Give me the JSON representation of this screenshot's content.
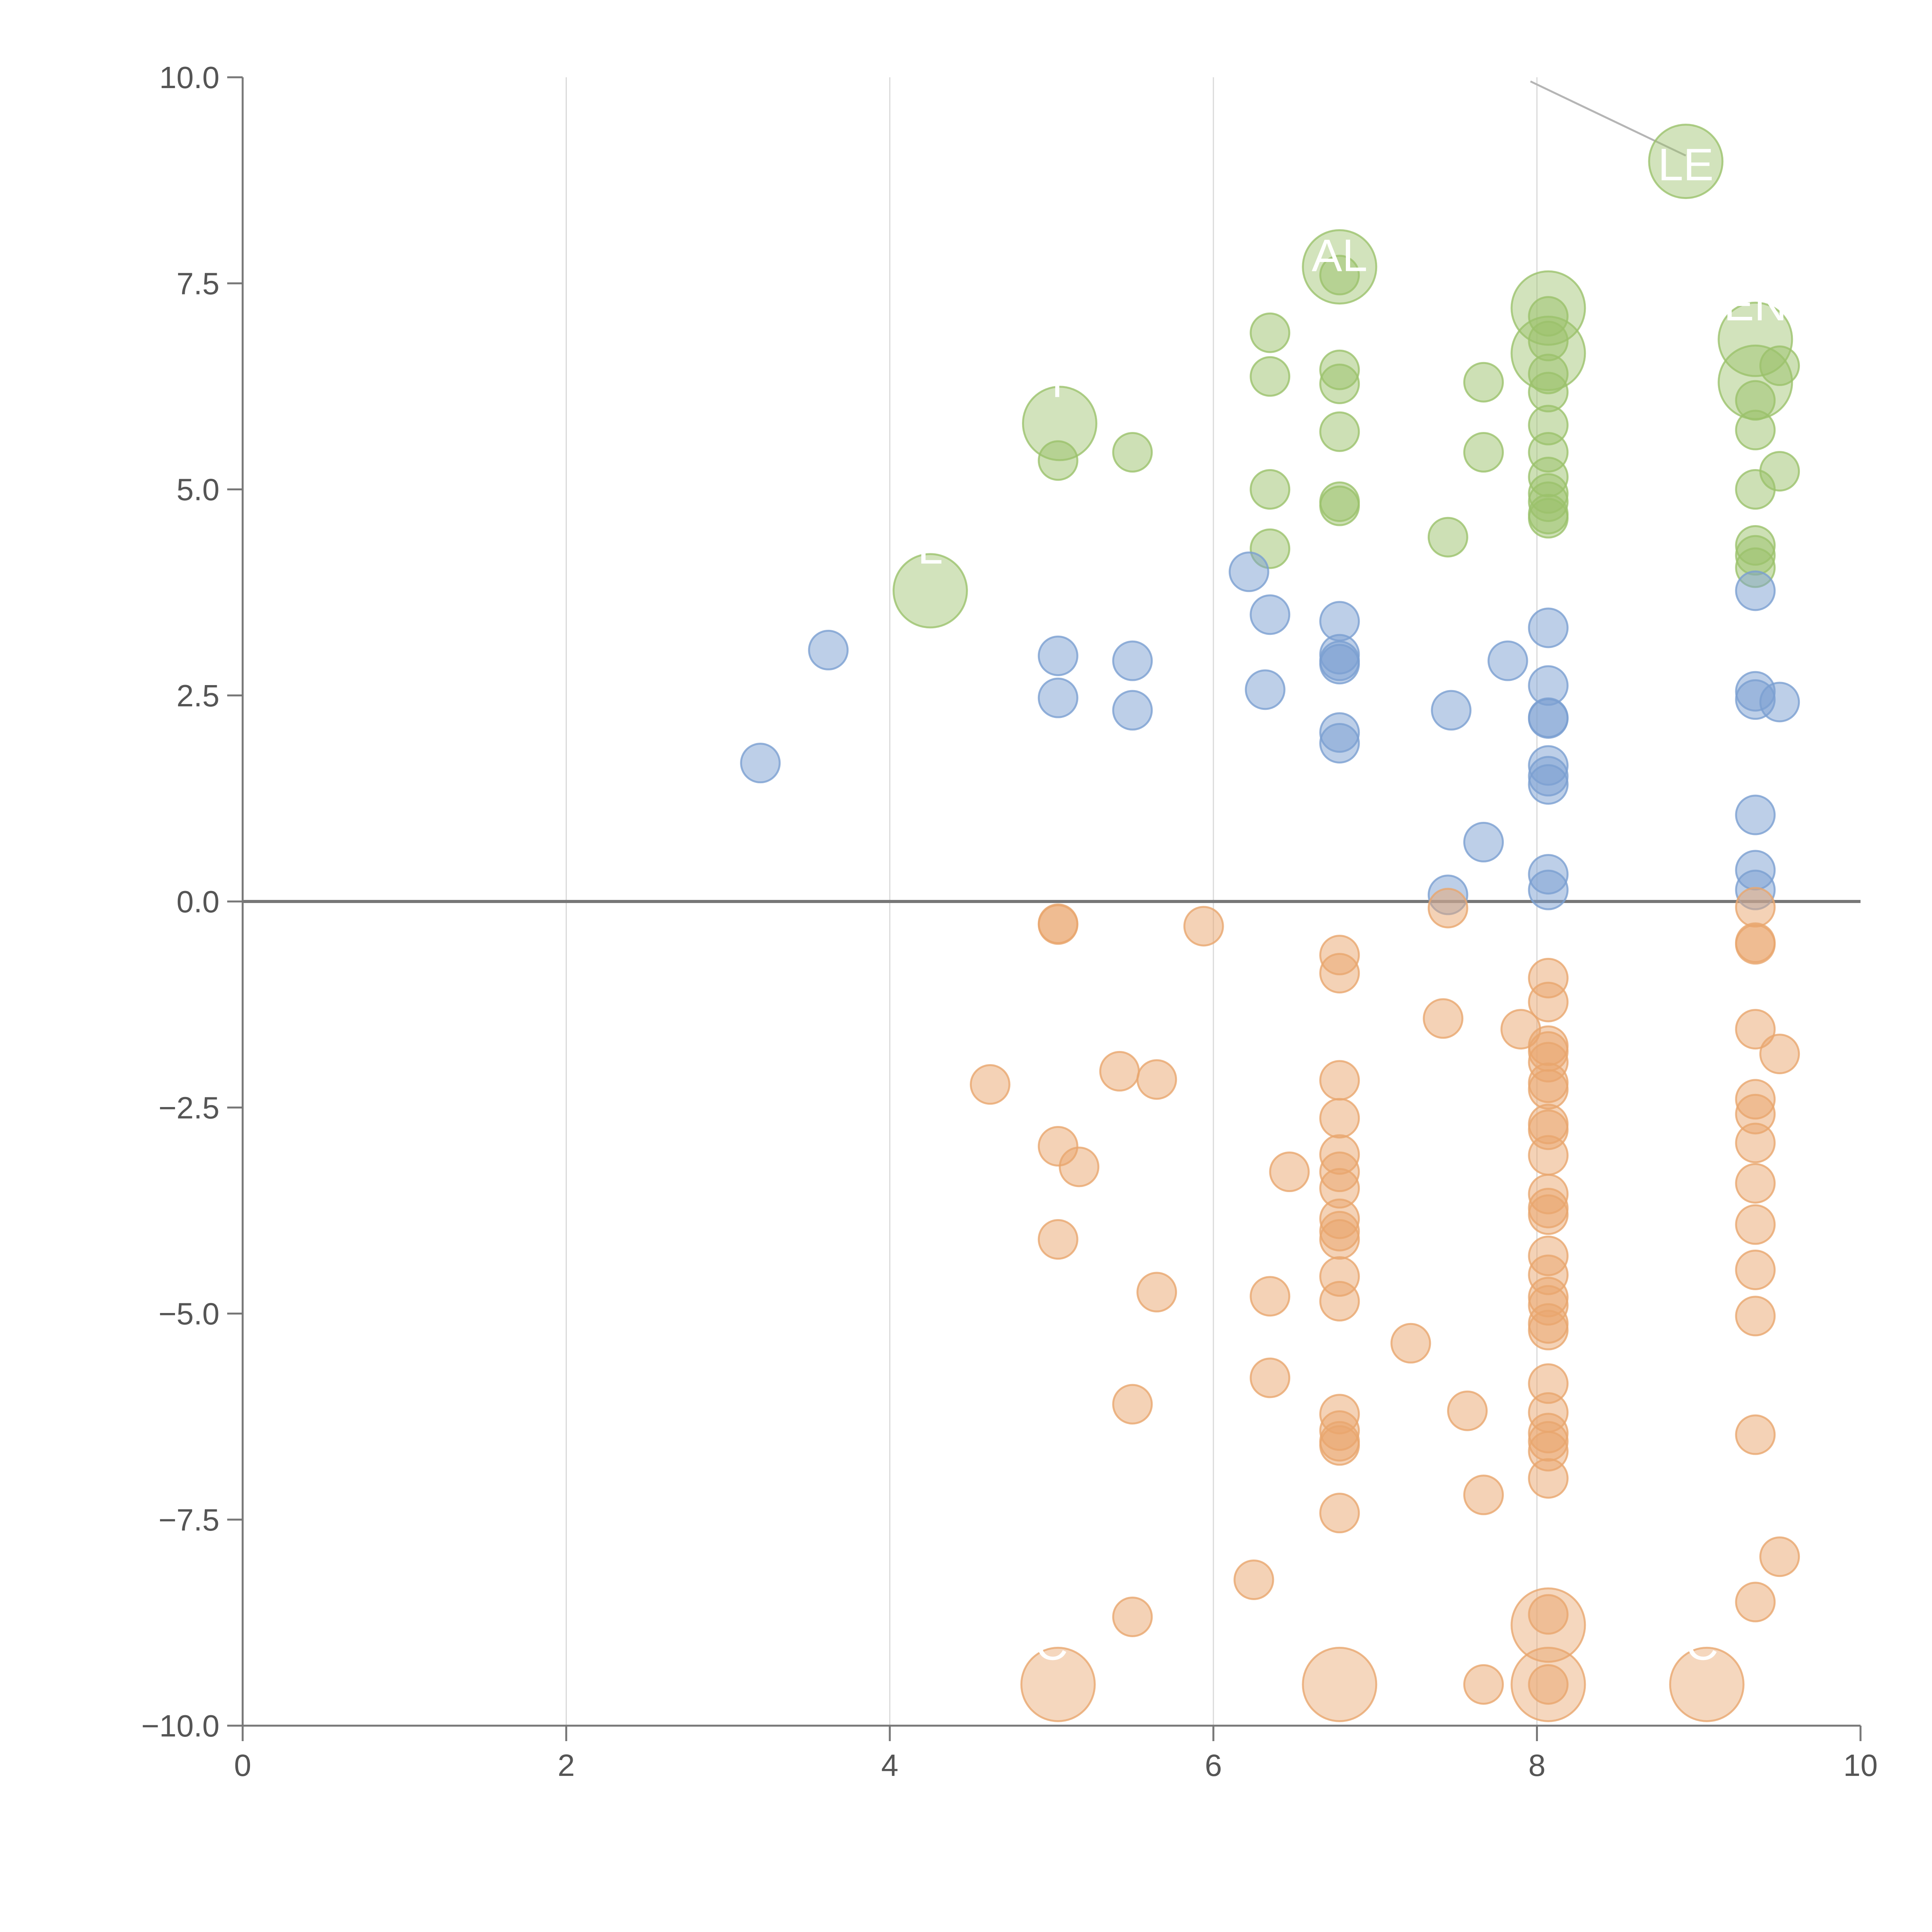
{
  "chart_data": {
    "type": "scatter",
    "title": "",
    "xlabel": "",
    "ylabel": "",
    "xlim": [
      0,
      10
    ],
    "ylim": [
      -10,
      10
    ],
    "grid": {
      "vertical": true,
      "horizontal": false
    },
    "baseline_y": 0,
    "x_ticks": [
      {
        "value": 0,
        "label": "0"
      },
      {
        "value": 2,
        "label": "2"
      },
      {
        "value": 4,
        "label": "4"
      },
      {
        "value": 6,
        "label": "6"
      },
      {
        "value": 8,
        "label": "8"
      },
      {
        "value": 10,
        "label": "10"
      }
    ],
    "y_ticks": [
      {
        "value": 10,
        "label": "10.0"
      },
      {
        "value": 7.5,
        "label": "7.5"
      },
      {
        "value": 5,
        "label": "5.0"
      },
      {
        "value": 2.5,
        "label": "2.5"
      },
      {
        "value": 0,
        "label": "0.0"
      },
      {
        "value": -2.5,
        "label": "−2.5"
      },
      {
        "value": -5,
        "label": "−5.0"
      },
      {
        "value": -7.5,
        "label": "−7.5"
      },
      {
        "value": -10,
        "label": "−10.0"
      }
    ],
    "series": [
      {
        "name": "green",
        "color": "#9bc26b",
        "points": [
          [
            5.04,
            5.35
          ],
          [
            5.5,
            5.45
          ],
          [
            6.35,
            6.9
          ],
          [
            6.35,
            6.37
          ],
          [
            6.35,
            5.0
          ],
          [
            6.35,
            4.28
          ],
          [
            6.78,
            6.45
          ],
          [
            6.78,
            6.28
          ],
          [
            6.78,
            5.7
          ],
          [
            6.78,
            4.85
          ],
          [
            6.78,
            4.8
          ],
          [
            6.78,
            7.6
          ],
          [
            7.45,
            4.42
          ],
          [
            7.67,
            6.3
          ],
          [
            7.67,
            5.45
          ],
          [
            8.07,
            6.8
          ],
          [
            8.07,
            6.4
          ],
          [
            8.07,
            6.18
          ],
          [
            8.07,
            5.78
          ],
          [
            8.07,
            5.45
          ],
          [
            8.07,
            5.15
          ],
          [
            8.07,
            4.95
          ],
          [
            8.07,
            4.85
          ],
          [
            8.07,
            4.7
          ],
          [
            8.07,
            4.65
          ],
          [
            8.07,
            7.1
          ],
          [
            9.35,
            6.08
          ],
          [
            9.35,
            5.72
          ],
          [
            9.35,
            5.0
          ],
          [
            9.35,
            4.32
          ],
          [
            9.35,
            4.2
          ],
          [
            9.35,
            4.05
          ],
          [
            9.5,
            6.5
          ],
          [
            9.5,
            5.22
          ]
        ],
        "big_points": [
          [
            4.25,
            3.77
          ],
          [
            5.05,
            5.8
          ],
          [
            6.78,
            7.7
          ],
          [
            8.07,
            7.2
          ],
          [
            8.07,
            6.65
          ],
          [
            8.92,
            8.98
          ],
          [
            9.35,
            6.82
          ],
          [
            9.35,
            6.3
          ]
        ]
      },
      {
        "name": "blue",
        "color": "#7b9fd1",
        "points": [
          [
            3.2,
            1.68
          ],
          [
            3.62,
            3.05
          ],
          [
            5.04,
            2.98
          ],
          [
            5.04,
            2.47
          ],
          [
            5.5,
            2.92
          ],
          [
            5.5,
            2.32
          ],
          [
            6.22,
            4.0
          ],
          [
            6.32,
            2.57
          ],
          [
            6.35,
            3.48
          ],
          [
            6.78,
            3.4
          ],
          [
            6.78,
            3.0
          ],
          [
            6.78,
            2.92
          ],
          [
            6.78,
            2.88
          ],
          [
            6.78,
            2.05
          ],
          [
            6.78,
            1.92
          ],
          [
            7.45,
            0.08
          ],
          [
            7.47,
            2.32
          ],
          [
            7.67,
            0.72
          ],
          [
            7.82,
            2.92
          ],
          [
            8.07,
            3.32
          ],
          [
            8.07,
            2.62
          ],
          [
            8.07,
            2.23
          ],
          [
            8.07,
            2.22
          ],
          [
            8.07,
            1.65
          ],
          [
            8.07,
            1.52
          ],
          [
            8.07,
            1.42
          ],
          [
            8.07,
            0.33
          ],
          [
            8.07,
            0.14
          ],
          [
            9.35,
            3.77
          ],
          [
            9.35,
            2.55
          ],
          [
            9.35,
            2.45
          ],
          [
            9.35,
            1.05
          ],
          [
            9.35,
            0.38
          ],
          [
            9.35,
            0.14
          ],
          [
            9.5,
            2.42
          ]
        ],
        "big_points": []
      },
      {
        "name": "orange",
        "color": "#e9a66e",
        "points": [
          [
            4.62,
            -2.22
          ],
          [
            5.04,
            -0.27
          ],
          [
            5.04,
            -0.28
          ],
          [
            5.04,
            -2.97
          ],
          [
            5.04,
            -4.1
          ],
          [
            5.17,
            -3.22
          ],
          [
            5.42,
            -2.06
          ],
          [
            5.5,
            -6.1
          ],
          [
            5.5,
            -8.68
          ],
          [
            5.65,
            -2.16
          ],
          [
            5.65,
            -4.74
          ],
          [
            5.94,
            -0.3
          ],
          [
            6.25,
            -8.23
          ],
          [
            6.35,
            -4.79
          ],
          [
            6.35,
            -5.78
          ],
          [
            6.47,
            -3.28
          ],
          [
            6.78,
            -0.65
          ],
          [
            6.78,
            -0.87
          ],
          [
            6.78,
            -2.17
          ],
          [
            6.78,
            -2.63
          ],
          [
            6.78,
            -3.07
          ],
          [
            6.78,
            -3.28
          ],
          [
            6.78,
            -3.48
          ],
          [
            6.78,
            -3.85
          ],
          [
            6.78,
            -4.0
          ],
          [
            6.78,
            -4.1
          ],
          [
            6.78,
            -4.55
          ],
          [
            6.78,
            -4.85
          ],
          [
            6.78,
            -6.22
          ],
          [
            6.78,
            -6.42
          ],
          [
            6.78,
            -6.55
          ],
          [
            6.78,
            -6.6
          ],
          [
            6.78,
            -7.42
          ],
          [
            7.22,
            -5.36
          ],
          [
            7.42,
            -1.42
          ],
          [
            7.45,
            -0.08
          ],
          [
            7.57,
            -6.18
          ],
          [
            7.67,
            -7.2
          ],
          [
            7.67,
            -9.5
          ],
          [
            7.9,
            -1.55
          ],
          [
            8.07,
            -0.93
          ],
          [
            8.07,
            -1.22
          ],
          [
            8.07,
            -1.75
          ],
          [
            8.07,
            -1.82
          ],
          [
            8.07,
            -1.95
          ],
          [
            8.07,
            -2.2
          ],
          [
            8.07,
            -2.28
          ],
          [
            8.07,
            -2.7
          ],
          [
            8.07,
            -2.77
          ],
          [
            8.07,
            -3.08
          ],
          [
            8.07,
            -3.55
          ],
          [
            8.07,
            -3.72
          ],
          [
            8.07,
            -3.8
          ],
          [
            8.07,
            -4.3
          ],
          [
            8.07,
            -4.53
          ],
          [
            8.07,
            -4.8
          ],
          [
            8.07,
            -4.9
          ],
          [
            8.07,
            -5.12
          ],
          [
            8.07,
            -5.2
          ],
          [
            8.07,
            -5.85
          ],
          [
            8.07,
            -6.2
          ],
          [
            8.07,
            -6.45
          ],
          [
            8.07,
            -6.55
          ],
          [
            8.07,
            -6.67
          ],
          [
            8.07,
            -7.0
          ],
          [
            8.07,
            -8.65
          ],
          [
            8.07,
            -9.5
          ],
          [
            9.35,
            -0.07
          ],
          [
            9.35,
            -0.5
          ],
          [
            9.35,
            -0.52
          ],
          [
            9.35,
            -1.55
          ],
          [
            9.35,
            -2.4
          ],
          [
            9.35,
            -2.58
          ],
          [
            9.35,
            -2.93
          ],
          [
            9.35,
            -3.42
          ],
          [
            9.35,
            -3.92
          ],
          [
            9.35,
            -4.47
          ],
          [
            9.35,
            -5.03
          ],
          [
            9.35,
            -6.47
          ],
          [
            9.35,
            -8.5
          ],
          [
            9.5,
            -1.85
          ],
          [
            9.5,
            -7.95
          ]
        ],
        "big_points": [
          [
            5.04,
            -9.5
          ],
          [
            6.78,
            -9.5
          ],
          [
            8.07,
            -8.78
          ],
          [
            8.07,
            -9.5
          ],
          [
            9.05,
            -9.5
          ]
        ]
      }
    ],
    "annotations": [
      {
        "text": "LE",
        "x": 8.92,
        "y": 8.75
      },
      {
        "text": "AL",
        "x": 6.78,
        "y": 7.65
      },
      {
        "text": "EN",
        "x": 9.35,
        "y": 7.05
      },
      {
        "text": "L",
        "x": 4.25,
        "y": 4.1
      },
      {
        "text": "r",
        "x": 5.05,
        "y": 6.12
      },
      {
        "text": ",",
        "x": 7.45,
        "y": 5.65
      },
      {
        "text": "C",
        "x": 5.0,
        "y": -9.2
      },
      {
        "text": "C",
        "x": 9.02,
        "y": -9.2
      }
    ],
    "callout_line": [
      [
        7.96,
        9.95
      ],
      [
        8.92,
        9.05
      ]
    ]
  }
}
